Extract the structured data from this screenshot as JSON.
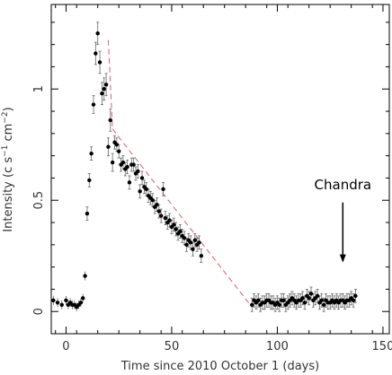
{
  "chart_data": {
    "type": "scatter",
    "title": "",
    "xlabel": "Time since 2010 October 1 (days)",
    "ylabel": "Intensity (c s",
    "ylabel_sup1": "−1",
    "ylabel_mid": " cm",
    "ylabel_sup2": "−2",
    "ylabel_end": ")",
    "xlim": [
      -7,
      153
    ],
    "ylim": [
      -0.1,
      1.38
    ],
    "xticks": [
      0,
      50,
      100,
      150
    ],
    "xtick_labels": [
      "0",
      "50",
      "100",
      "150"
    ],
    "yticks": [
      0,
      0.5,
      1
    ],
    "ytick_labels": [
      "0",
      "0.5",
      "1"
    ],
    "grid": false,
    "colors": {
      "points": "#000000",
      "errorbars": "#666666",
      "fit": "#e05a6a",
      "axes": "#000000"
    },
    "annotation": {
      "text": "Chandra",
      "x": 131,
      "y_text": 0.55,
      "y_arrow_start": 0.49,
      "y_arrow_end": 0.22
    },
    "fit_line": {
      "style": "dashed",
      "x": [
        20,
        22,
        88
      ],
      "y": [
        1.22,
        0.82,
        0.02
      ]
    },
    "series": [
      {
        "x": [
          -6,
          -4,
          -2,
          0,
          1,
          2,
          3,
          4,
          5,
          6,
          7,
          8,
          9,
          10,
          11,
          12,
          13,
          14,
          15,
          16,
          17,
          18,
          19,
          20,
          21,
          22,
          23,
          24,
          25,
          26,
          27,
          28,
          29,
          30,
          31,
          32,
          33,
          34,
          35,
          36,
          37,
          38,
          39,
          40,
          41,
          42,
          43,
          44,
          45,
          46,
          47,
          48,
          49,
          50,
          51,
          52,
          53,
          54,
          55,
          56,
          57,
          58,
          59,
          60,
          61,
          62,
          63,
          64,
          88,
          89,
          90,
          91,
          92,
          93,
          94,
          95,
          96,
          97,
          98,
          99,
          100,
          101,
          102,
          103,
          104,
          105,
          106,
          107,
          108,
          109,
          110,
          111,
          112,
          113,
          114,
          115,
          116,
          117,
          118,
          119,
          120,
          121,
          122,
          123,
          124,
          125,
          126,
          127,
          128,
          129,
          130,
          131,
          132,
          133,
          134,
          135,
          136,
          137
        ],
        "y": [
          0.05,
          0.04,
          0.03,
          0.05,
          0.03,
          0.04,
          0.03,
          0.03,
          0.02,
          0.03,
          0.04,
          0.06,
          0.16,
          0.44,
          0.59,
          0.71,
          0.93,
          1.16,
          1.25,
          1.12,
          0.98,
          1.0,
          1.02,
          0.74,
          0.86,
          0.67,
          0.76,
          0.75,
          0.72,
          0.66,
          0.67,
          0.64,
          0.65,
          0.58,
          0.66,
          0.66,
          0.62,
          0.63,
          0.54,
          0.6,
          0.56,
          0.55,
          0.52,
          0.51,
          0.5,
          0.47,
          0.48,
          0.45,
          0.43,
          0.55,
          0.42,
          0.4,
          0.41,
          0.38,
          0.39,
          0.37,
          0.35,
          0.36,
          0.34,
          0.33,
          0.3,
          0.32,
          0.31,
          0.28,
          0.32,
          0.3,
          0.31,
          0.25,
          0.03,
          0.05,
          0.04,
          0.05,
          0.03,
          0.04,
          0.04,
          0.05,
          0.05,
          0.04,
          0.04,
          0.03,
          0.04,
          0.03,
          0.05,
          0.05,
          0.03,
          0.04,
          0.05,
          0.06,
          0.05,
          0.04,
          0.05,
          0.05,
          0.06,
          0.04,
          0.07,
          0.06,
          0.08,
          0.05,
          0.06,
          0.07,
          0.04,
          0.05,
          0.03,
          0.05,
          0.04,
          0.04,
          0.05,
          0.04,
          0.05,
          0.04,
          0.05,
          0.05,
          0.04,
          0.05,
          0.05,
          0.06,
          0.05,
          0.07
        ],
        "err": [
          0.02,
          0.02,
          0.02,
          0.02,
          0.02,
          0.02,
          0.02,
          0.02,
          0.02,
          0.02,
          0.02,
          0.02,
          0.02,
          0.03,
          0.03,
          0.03,
          0.04,
          0.05,
          0.05,
          0.05,
          0.05,
          0.05,
          0.05,
          0.04,
          0.05,
          0.04,
          0.03,
          0.03,
          0.03,
          0.03,
          0.03,
          0.03,
          0.03,
          0.03,
          0.03,
          0.03,
          0.03,
          0.03,
          0.03,
          0.03,
          0.03,
          0.03,
          0.03,
          0.03,
          0.03,
          0.03,
          0.03,
          0.03,
          0.03,
          0.03,
          0.03,
          0.03,
          0.03,
          0.03,
          0.03,
          0.03,
          0.03,
          0.03,
          0.03,
          0.03,
          0.03,
          0.03,
          0.03,
          0.03,
          0.03,
          0.03,
          0.03,
          0.03,
          0.03,
          0.03,
          0.03,
          0.03,
          0.03,
          0.03,
          0.03,
          0.03,
          0.03,
          0.03,
          0.03,
          0.03,
          0.03,
          0.03,
          0.03,
          0.03,
          0.03,
          0.03,
          0.03,
          0.03,
          0.03,
          0.03,
          0.03,
          0.03,
          0.03,
          0.03,
          0.03,
          0.03,
          0.03,
          0.03,
          0.03,
          0.03,
          0.03,
          0.03,
          0.03,
          0.03,
          0.03,
          0.03,
          0.03,
          0.03,
          0.03,
          0.03,
          0.03,
          0.03,
          0.03,
          0.03,
          0.03,
          0.03,
          0.03,
          0.03
        ]
      }
    ]
  }
}
